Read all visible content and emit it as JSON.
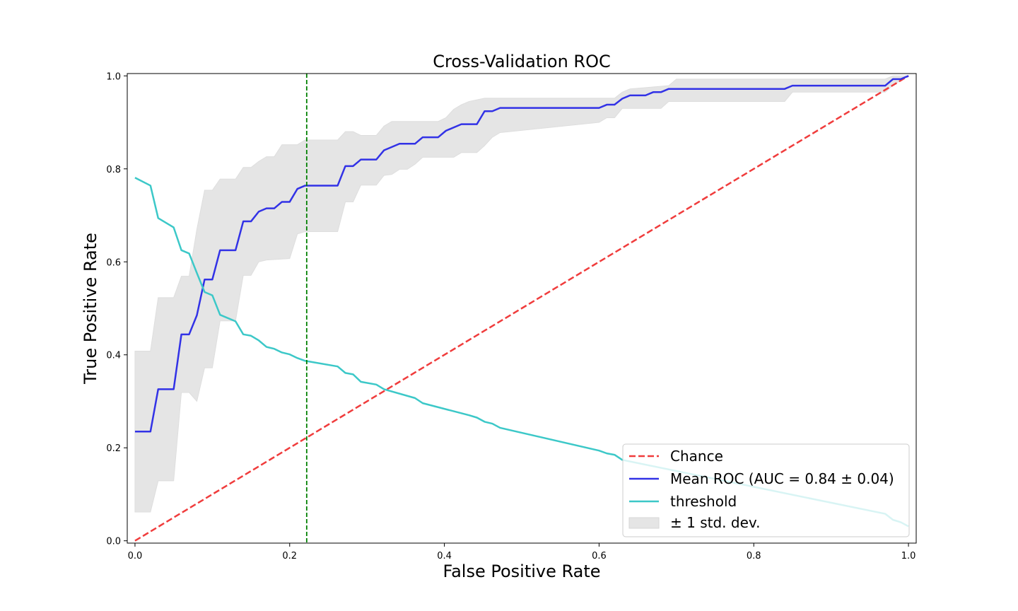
{
  "chart_data": {
    "type": "line",
    "title": "Cross-Validation ROC",
    "xlabel": "False Positive Rate",
    "ylabel": "True Positive Rate",
    "xlim": [
      -0.01,
      1.01
    ],
    "ylim": [
      -0.005,
      1.005
    ],
    "x_ticks": [
      "0.0",
      "0.2",
      "0.4",
      "0.6",
      "0.8",
      "1.0"
    ],
    "y_ticks": [
      "0.0",
      "0.2",
      "0.4",
      "0.6",
      "0.8",
      "1.0"
    ],
    "grid": false,
    "legend_position": "bottom-right",
    "threshold_marker_x": 0.222,
    "series": [
      {
        "name": "Chance",
        "style": "dashed",
        "color": "#f03c3c",
        "points": [
          [
            0,
            0
          ],
          [
            1,
            1
          ]
        ]
      },
      {
        "name": "Mean ROC (AUC = 0.84 ± 0.04)",
        "style": "solid",
        "color": "#3232e6",
        "points": [
          [
            0,
            0.235
          ],
          [
            0.02,
            0.235
          ],
          [
            0.03,
            0.326
          ],
          [
            0.05,
            0.326
          ],
          [
            0.06,
            0.444
          ],
          [
            0.07,
            0.444
          ],
          [
            0.08,
            0.485
          ],
          [
            0.09,
            0.562
          ],
          [
            0.1,
            0.562
          ],
          [
            0.11,
            0.625
          ],
          [
            0.13,
            0.625
          ],
          [
            0.14,
            0.687
          ],
          [
            0.15,
            0.687
          ],
          [
            0.16,
            0.708
          ],
          [
            0.17,
            0.715
          ],
          [
            0.18,
            0.715
          ],
          [
            0.19,
            0.729
          ],
          [
            0.2,
            0.729
          ],
          [
            0.21,
            0.757
          ],
          [
            0.22,
            0.764
          ],
          [
            0.262,
            0.764
          ],
          [
            0.272,
            0.806
          ],
          [
            0.282,
            0.806
          ],
          [
            0.292,
            0.82
          ],
          [
            0.312,
            0.82
          ],
          [
            0.322,
            0.84
          ],
          [
            0.342,
            0.854
          ],
          [
            0.362,
            0.854
          ],
          [
            0.372,
            0.868
          ],
          [
            0.392,
            0.868
          ],
          [
            0.402,
            0.882
          ],
          [
            0.422,
            0.896
          ],
          [
            0.442,
            0.896
          ],
          [
            0.452,
            0.924
          ],
          [
            0.462,
            0.924
          ],
          [
            0.472,
            0.931
          ],
          [
            0.6,
            0.931
          ],
          [
            0.61,
            0.938
          ],
          [
            0.62,
            0.938
          ],
          [
            0.63,
            0.951
          ],
          [
            0.64,
            0.958
          ],
          [
            0.66,
            0.958
          ],
          [
            0.67,
            0.965
          ],
          [
            0.68,
            0.965
          ],
          [
            0.69,
            0.972
          ],
          [
            0.84,
            0.972
          ],
          [
            0.85,
            0.979
          ],
          [
            0.97,
            0.979
          ],
          [
            0.98,
            0.993
          ],
          [
            0.99,
            0.993
          ],
          [
            1.0,
            1.0
          ]
        ]
      },
      {
        "name": "threshold",
        "style": "solid",
        "color": "#3cc8c8",
        "points": [
          [
            0,
            0.781
          ],
          [
            0.02,
            0.764
          ],
          [
            0.03,
            0.694
          ],
          [
            0.05,
            0.674
          ],
          [
            0.06,
            0.625
          ],
          [
            0.07,
            0.618
          ],
          [
            0.08,
            0.576
          ],
          [
            0.09,
            0.535
          ],
          [
            0.1,
            0.528
          ],
          [
            0.11,
            0.486
          ],
          [
            0.13,
            0.472
          ],
          [
            0.14,
            0.444
          ],
          [
            0.15,
            0.441
          ],
          [
            0.16,
            0.431
          ],
          [
            0.17,
            0.417
          ],
          [
            0.18,
            0.413
          ],
          [
            0.19,
            0.405
          ],
          [
            0.2,
            0.401
          ],
          [
            0.21,
            0.393
          ],
          [
            0.22,
            0.387
          ],
          [
            0.262,
            0.375
          ],
          [
            0.272,
            0.361
          ],
          [
            0.282,
            0.358
          ],
          [
            0.292,
            0.342
          ],
          [
            0.312,
            0.336
          ],
          [
            0.322,
            0.326
          ],
          [
            0.362,
            0.307
          ],
          [
            0.372,
            0.296
          ],
          [
            0.432,
            0.27
          ],
          [
            0.442,
            0.265
          ],
          [
            0.452,
            0.256
          ],
          [
            0.462,
            0.252
          ],
          [
            0.472,
            0.243
          ],
          [
            0.6,
            0.194
          ],
          [
            0.61,
            0.188
          ],
          [
            0.62,
            0.185
          ],
          [
            0.63,
            0.174
          ],
          [
            0.97,
            0.058
          ],
          [
            0.98,
            0.045
          ],
          [
            0.99,
            0.04
          ],
          [
            1.0,
            0.031
          ]
        ]
      }
    ],
    "band": {
      "name": "± 1 std. dev.",
      "color": "#e5e5e5",
      "upper": [
        [
          0,
          0.408
        ],
        [
          0.02,
          0.408
        ],
        [
          0.03,
          0.523
        ],
        [
          0.05,
          0.523
        ],
        [
          0.06,
          0.569
        ],
        [
          0.07,
          0.569
        ],
        [
          0.08,
          0.67
        ],
        [
          0.09,
          0.754
        ],
        [
          0.1,
          0.754
        ],
        [
          0.11,
          0.778
        ],
        [
          0.13,
          0.778
        ],
        [
          0.14,
          0.803
        ],
        [
          0.15,
          0.803
        ],
        [
          0.16,
          0.816
        ],
        [
          0.17,
          0.826
        ],
        [
          0.18,
          0.826
        ],
        [
          0.19,
          0.852
        ],
        [
          0.21,
          0.852
        ],
        [
          0.22,
          0.862
        ],
        [
          0.262,
          0.862
        ],
        [
          0.272,
          0.88
        ],
        [
          0.282,
          0.88
        ],
        [
          0.292,
          0.872
        ],
        [
          0.312,
          0.872
        ],
        [
          0.322,
          0.892
        ],
        [
          0.332,
          0.902
        ],
        [
          0.392,
          0.902
        ],
        [
          0.402,
          0.91
        ],
        [
          0.412,
          0.928
        ],
        [
          0.422,
          0.938
        ],
        [
          0.432,
          0.945
        ],
        [
          0.452,
          0.952
        ],
        [
          0.472,
          0.952
        ],
        [
          0.62,
          0.952
        ],
        [
          0.63,
          0.965
        ],
        [
          0.64,
          0.972
        ],
        [
          0.69,
          0.979
        ],
        [
          0.7,
          0.993
        ],
        [
          0.97,
          0.993
        ],
        [
          0.98,
          1.0
        ],
        [
          1.0,
          1.0
        ]
      ],
      "lower": [
        [
          0,
          0.062
        ],
        [
          0.02,
          0.062
        ],
        [
          0.03,
          0.129
        ],
        [
          0.05,
          0.129
        ],
        [
          0.06,
          0.319
        ],
        [
          0.07,
          0.319
        ],
        [
          0.08,
          0.3
        ],
        [
          0.09,
          0.372
        ],
        [
          0.1,
          0.372
        ],
        [
          0.11,
          0.473
        ],
        [
          0.13,
          0.473
        ],
        [
          0.14,
          0.571
        ],
        [
          0.15,
          0.571
        ],
        [
          0.16,
          0.6
        ],
        [
          0.17,
          0.604
        ],
        [
          0.2,
          0.607
        ],
        [
          0.21,
          0.66
        ],
        [
          0.22,
          0.665
        ],
        [
          0.262,
          0.665
        ],
        [
          0.272,
          0.729
        ],
        [
          0.282,
          0.729
        ],
        [
          0.292,
          0.765
        ],
        [
          0.312,
          0.765
        ],
        [
          0.322,
          0.786
        ],
        [
          0.332,
          0.788
        ],
        [
          0.342,
          0.799
        ],
        [
          0.352,
          0.799
        ],
        [
          0.362,
          0.81
        ],
        [
          0.372,
          0.825
        ],
        [
          0.412,
          0.825
        ],
        [
          0.422,
          0.835
        ],
        [
          0.442,
          0.835
        ],
        [
          0.452,
          0.85
        ],
        [
          0.462,
          0.868
        ],
        [
          0.472,
          0.878
        ],
        [
          0.6,
          0.9
        ],
        [
          0.61,
          0.91
        ],
        [
          0.62,
          0.91
        ],
        [
          0.63,
          0.93
        ],
        [
          0.68,
          0.93
        ],
        [
          0.69,
          0.945
        ],
        [
          0.84,
          0.945
        ],
        [
          0.85,
          0.965
        ],
        [
          0.97,
          0.965
        ],
        [
          0.98,
          0.98
        ],
        [
          1.0,
          1.0
        ]
      ]
    }
  }
}
